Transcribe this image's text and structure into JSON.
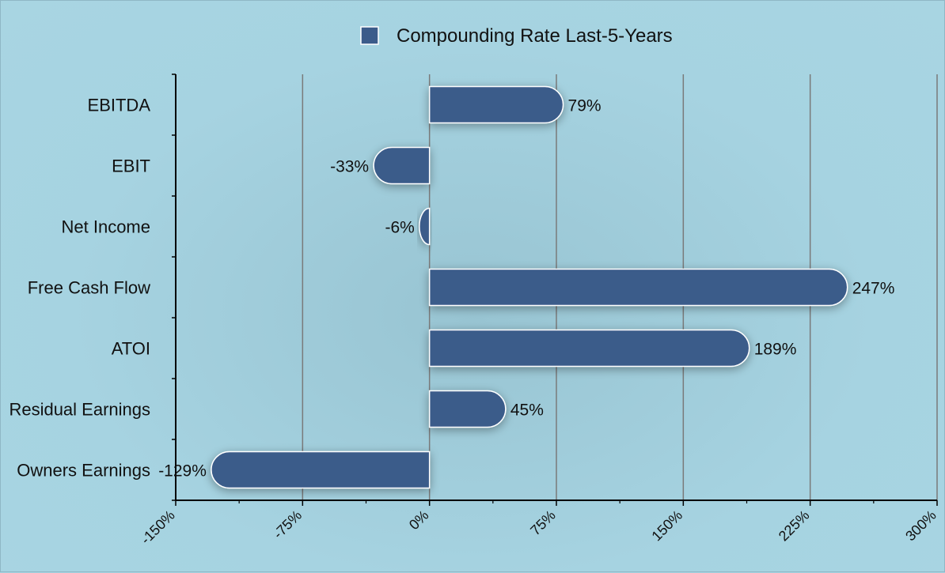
{
  "chart_data": {
    "type": "bar",
    "orientation": "horizontal",
    "title": "",
    "xlabel": "",
    "ylabel": "",
    "categories": [
      "EBITDA",
      "EBIT",
      "Net Income",
      "Free Cash Flow",
      "ATOI",
      "Residual Earnings",
      "Owners Earnings"
    ],
    "series": [
      {
        "name": "Compounding Rate Last-5-Years",
        "values": [
          79,
          -33,
          -6,
          247,
          189,
          45,
          -129
        ],
        "labels": [
          "79%",
          "-33%",
          "-6%",
          "247%",
          "189%",
          "45%",
          "-129%"
        ],
        "color": "#3b5b8a"
      }
    ],
    "xlim": [
      -150,
      300
    ],
    "xticks": [
      -150,
      -75,
      0,
      75,
      150,
      225,
      300
    ],
    "xtick_labels": [
      "-150%",
      "-75%",
      "0%",
      "75%",
      "150%",
      "225%",
      "300%"
    ],
    "grid": true,
    "legend": "top-center"
  }
}
